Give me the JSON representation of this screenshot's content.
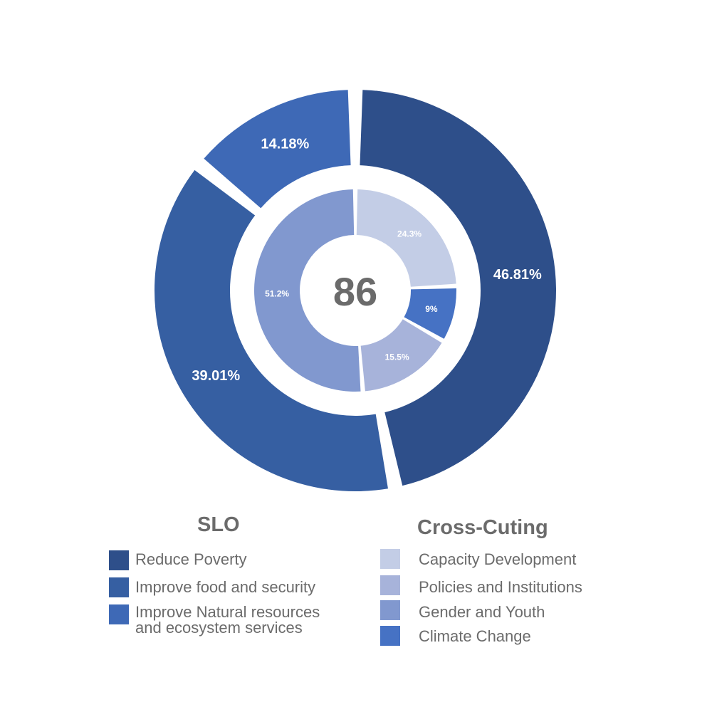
{
  "chart_data": {
    "type": "donut",
    "center_value": "86",
    "outer": {
      "legend_title": "SLO",
      "slices": [
        {
          "name": "Reduce Poverty",
          "value": 46.81,
          "label": "46.81%",
          "color": "#2e4f8a"
        },
        {
          "name": "Improve food and security",
          "value": 39.01,
          "label": "39.01%",
          "color": "#365fa2"
        },
        {
          "name": "Improve Natural resources and ecosystem services",
          "value": 14.18,
          "label": "14.18%",
          "color": "#3e69b6"
        }
      ]
    },
    "inner": {
      "legend_title": "Cross-Cuting",
      "slices": [
        {
          "name": "Capacity Development",
          "value": 24.3,
          "label": "24.3%",
          "color": "#c3cde6"
        },
        {
          "name": "Climate Change",
          "value": 9,
          "label": "9%",
          "color": "#4672c4"
        },
        {
          "name": "Policies and Institutions",
          "value": 15.5,
          "label": "15.5%",
          "color": "#a7b3da"
        },
        {
          "name": "Gender and Youth",
          "value": 51.2,
          "label": "51.2%",
          "color": "#8198cf"
        }
      ]
    }
  },
  "legend": {
    "slo": {
      "title": "SLO",
      "items": [
        {
          "line1": "Reduce Poverty",
          "line2": "",
          "color": "#2e4f8a"
        },
        {
          "line1": "Improve food and security",
          "line2": "",
          "color": "#365fa2"
        },
        {
          "line1": "Improve  Natural  resources",
          "line2": "and ecosystem services",
          "color": "#3e69b6"
        }
      ]
    },
    "cross": {
      "title": "Cross-Cuting",
      "items": [
        {
          "line1": "Capacity Development",
          "color": "#c3cde6"
        },
        {
          "line1": "Policies and Institutions",
          "color": "#a7b3da"
        },
        {
          "line1": "Gender and Youth",
          "color": "#8198cf"
        },
        {
          "line1": "Climate Change",
          "color": "#4672c4"
        }
      ]
    }
  }
}
